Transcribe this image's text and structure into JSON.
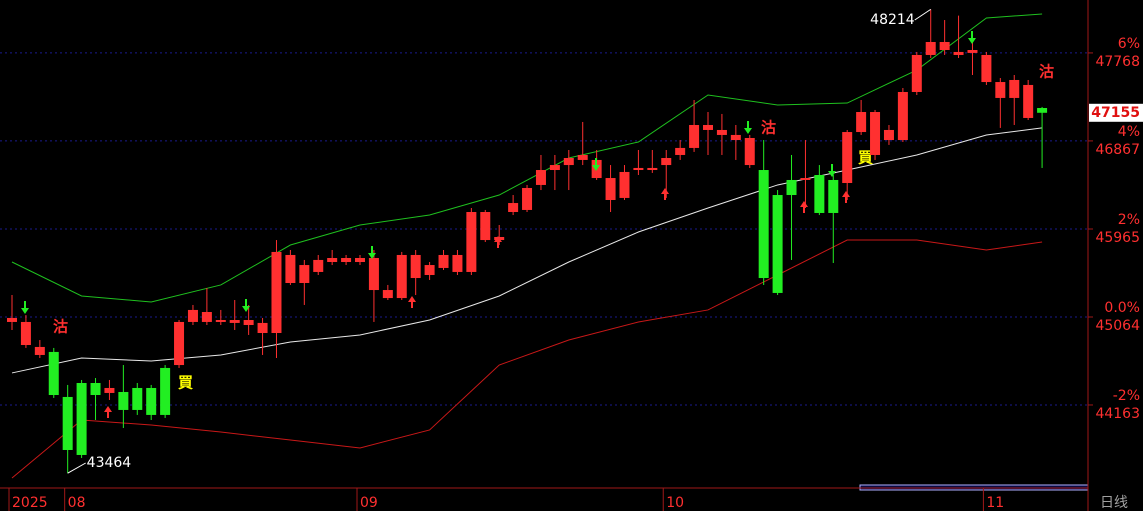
{
  "chart_data": {
    "type": "candlestick",
    "categories": [
      "2025",
      null,
      null,
      null,
      "08",
      null,
      null,
      null,
      null,
      null,
      null,
      null,
      null,
      null,
      null,
      null,
      null,
      null,
      null,
      null,
      null,
      null,
      null,
      null,
      null,
      "09",
      null,
      null,
      null,
      null,
      null,
      null,
      null,
      null,
      null,
      null,
      null,
      null,
      null,
      null,
      null,
      null,
      null,
      null,
      null,
      null,
      null,
      "10",
      null,
      null,
      null,
      null,
      null,
      null,
      null,
      null,
      null,
      null,
      null,
      null,
      null,
      null,
      null,
      null,
      null,
      null,
      null,
      null,
      null,
      null,
      "11",
      null,
      null,
      null,
      null
    ],
    "open": [
      45013,
      44777,
      44675,
      44706,
      44245,
      44388,
      44388,
      44286,
      44296,
      44337,
      44337,
      44542,
      44572,
      45013,
      45013,
      45013,
      45003,
      44982,
      44900,
      44900,
      45412,
      45412,
      45525,
      45627,
      45627,
      45627,
      45340,
      45258,
      45258,
      45463,
      45494,
      45566,
      45525,
      45525,
      45852,
      45852,
      46139,
      46160,
      46416,
      46569,
      46620,
      46672,
      46487,
      46262,
      46283,
      46569,
      46569,
      46620,
      46723,
      46795,
      46979,
      46928,
      46876,
      46620,
      46569,
      46313,
      46467,
      46467,
      46518,
      46467,
      46436,
      46958,
      46723,
      46876,
      46876,
      47368,
      47747,
      47798,
      47747,
      47768,
      47470,
      47307,
      47307,
      47102,
      47204
    ],
    "high": [
      45289,
      45084,
      44828,
      44747,
      44368,
      44419,
      44439,
      44419,
      44572,
      44388,
      44368,
      44572,
      45033,
      45187,
      45361,
      45136,
      45238,
      45187,
      45054,
      45852,
      45750,
      45648,
      45699,
      45750,
      45699,
      45699,
      45750,
      45392,
      45730,
      45750,
      45627,
      45750,
      45750,
      46180,
      46160,
      46006,
      46313,
      46416,
      46723,
      46723,
      46774,
      47061,
      46774,
      46620,
      46620,
      46774,
      46774,
      46774,
      46876,
      47286,
      47163,
      47143,
      47030,
      46928,
      46876,
      46364,
      46723,
      46876,
      46620,
      46518,
      46979,
      47286,
      47184,
      47030,
      47409,
      47778,
      48214,
      48105,
      48150,
      47952,
      47778,
      47511,
      47542,
      47491,
      47215
    ],
    "low": [
      44931,
      44747,
      44644,
      44235,
      43464,
      43620,
      44009,
      44214,
      43927,
      44061,
      44009,
      44030,
      44542,
      44982,
      44982,
      44982,
      44931,
      44880,
      44675,
      44644,
      45392,
      45187,
      45494,
      45596,
      45596,
      45596,
      45013,
      45238,
      45238,
      45289,
      45443,
      45545,
      45494,
      45494,
      45832,
      45801,
      46108,
      46139,
      46364,
      46364,
      46364,
      46620,
      46467,
      46139,
      46262,
      46518,
      46539,
      46283,
      46672,
      46754,
      46723,
      46723,
      46672,
      46590,
      45392,
      45289,
      45648,
      46180,
      46108,
      45617,
      46262,
      46928,
      46672,
      46826,
      46856,
      47337,
      47716,
      47747,
      47716,
      47542,
      47440,
      47000,
      47030,
      47081,
      46590
    ],
    "close": [
      45054,
      45013,
      44757,
      44265,
      43702,
      43651,
      44265,
      44337,
      44112,
      44112,
      44061,
      44061,
      45013,
      45136,
      45115,
      45033,
      45033,
      45033,
      45003,
      45730,
      45699,
      45596,
      45648,
      45668,
      45668,
      45668,
      45668,
      45340,
      45699,
      45699,
      45596,
      45699,
      45699,
      46139,
      46139,
      45883,
      46231,
      46385,
      46569,
      46620,
      46692,
      46723,
      46672,
      46487,
      46549,
      46590,
      46590,
      46692,
      46795,
      47030,
      47030,
      46979,
      46928,
      46897,
      45463,
      45310,
      46313,
      46487,
      46129,
      46129,
      46958,
      47163,
      47163,
      46979,
      47368,
      47747,
      47880,
      47880,
      47778,
      47798,
      47747,
      47470,
      47491,
      47440,
      47155
    ],
    "up_color": "#ff3030",
    "down_color": "#22ee22",
    "series": [
      {
        "color": "#1fc01f",
        "x": [
          0,
          5,
          10,
          15,
          20,
          25,
          30,
          35,
          40,
          45,
          50,
          55,
          60,
          65,
          70,
          74
        ],
        "values": [
          45627,
          45279,
          45218,
          45392,
          45801,
          46006,
          46108,
          46313,
          46692,
          46856,
          47337,
          47235,
          47255,
          47593,
          48126,
          48167
        ]
      },
      {
        "color": "#e8e8e8",
        "x": [
          0,
          5,
          10,
          15,
          20,
          25,
          30,
          35,
          40,
          45,
          50,
          55,
          60,
          65,
          70,
          74
        ],
        "values": [
          44491,
          44644,
          44613,
          44675,
          44808,
          44880,
          45033,
          45279,
          45627,
          45934,
          46180,
          46416,
          46569,
          46723,
          46928,
          47000
        ]
      },
      {
        "color": "#c81818",
        "x": [
          0,
          5,
          10,
          15,
          20,
          25,
          30,
          35,
          40,
          45,
          50,
          55,
          60,
          65,
          70,
          74
        ],
        "values": [
          43415,
          44009,
          43958,
          43886,
          43804,
          43723,
          43907,
          44572,
          44828,
          45013,
          45136,
          45494,
          45852,
          45852,
          45750,
          45832
        ]
      }
    ],
    "ylim": [
      43323,
      48310
    ],
    "yticks": [
      {
        "value": 47768,
        "label": "6%"
      },
      {
        "value": 46867,
        "label": "4%"
      },
      {
        "value": 45965,
        "label": "2%"
      },
      {
        "value": 45064,
        "label": "0.0%"
      },
      {
        "value": 44163,
        "label": "-2%"
      }
    ],
    "y2lim": [
      43323,
      48310
    ],
    "y2ticks": [
      47768,
      46867,
      45965,
      45064,
      44163
    ],
    "current_price": 47155,
    "annotations": [
      "沽",
      "買",
      "沽",
      "買",
      "沽"
    ],
    "period": "日线",
    "grid": true
  }
}
